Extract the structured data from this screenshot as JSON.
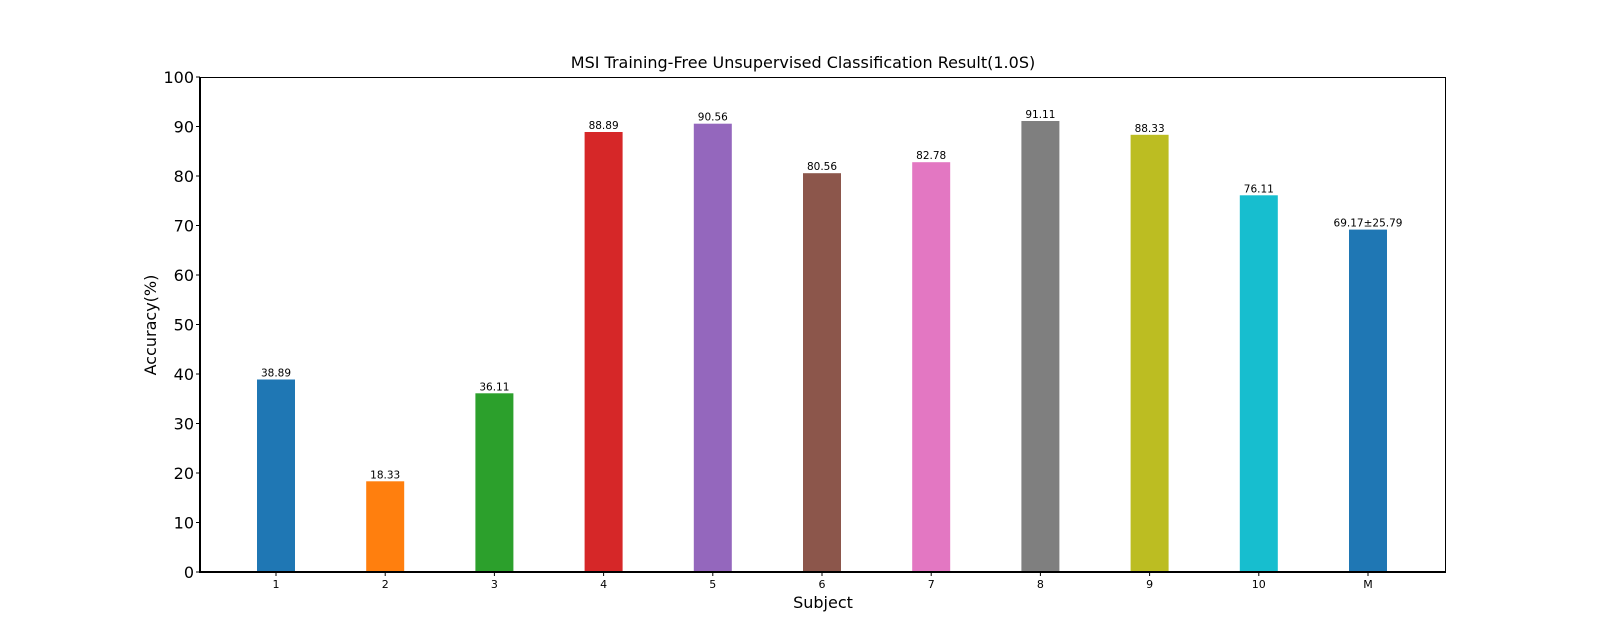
{
  "chart_data": {
    "type": "bar",
    "title": "MSI Training-Free Unsupervised Classification Result(1.0S)",
    "xlabel": "Subject",
    "ylabel": "Accuracy(%)",
    "ylim": [
      0,
      100
    ],
    "yticks": [
      0,
      10,
      20,
      30,
      40,
      50,
      60,
      70,
      80,
      90,
      100
    ],
    "grid": false,
    "legend": "none",
    "categories": [
      "1",
      "2",
      "3",
      "4",
      "5",
      "6",
      "7",
      "8",
      "9",
      "10",
      "M"
    ],
    "values": [
      38.89,
      18.33,
      36.11,
      88.89,
      90.56,
      80.56,
      82.78,
      91.11,
      88.33,
      76.11,
      69.17
    ],
    "data_labels": [
      "38.89",
      "18.33",
      "36.11",
      "88.89",
      "90.56",
      "80.56",
      "82.78",
      "91.11",
      "88.33",
      "76.11",
      "69.17±25.79"
    ],
    "colors": [
      "#1f77b4",
      "#ff7f0e",
      "#2ca02c",
      "#d62728",
      "#9467bd",
      "#8c564b",
      "#e377c2",
      "#7f7f7f",
      "#bcbd22",
      "#17becf",
      "#1f77b4"
    ],
    "label_colors": [
      "#000000",
      "#000000",
      "#000000",
      "#000000",
      "#000000",
      "#000000",
      "#000000",
      "#000000",
      "#000000",
      "#000000",
      "#ff0000"
    ]
  }
}
